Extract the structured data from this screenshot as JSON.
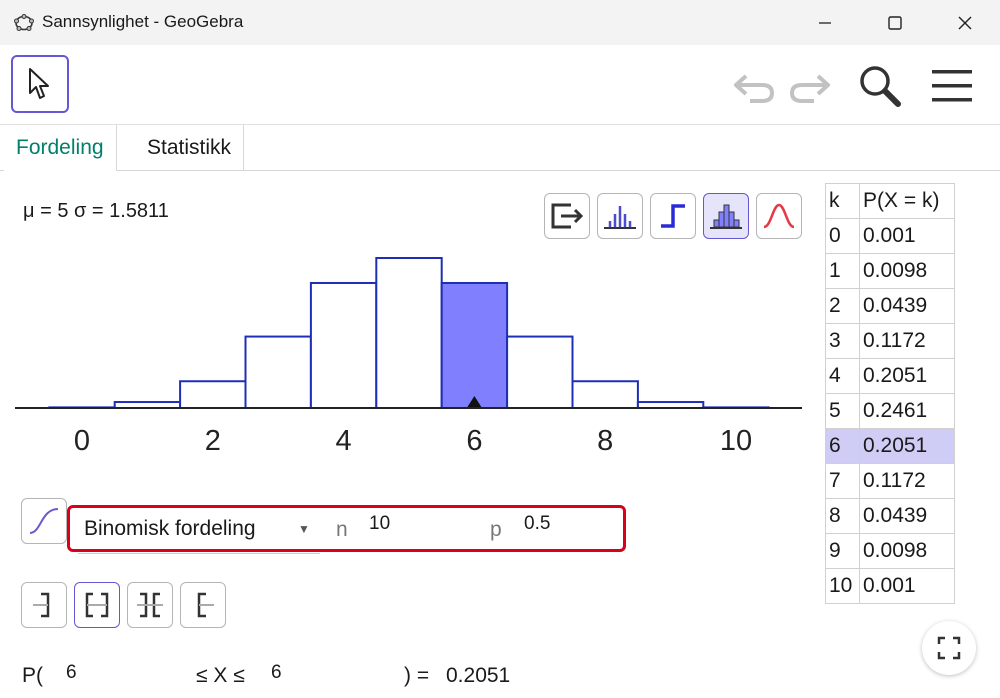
{
  "window": {
    "title": "Sannsynlighet - GeoGebra",
    "icons": {
      "app": "geogebra-icon",
      "minimize": "minimize-icon",
      "maximize": "maximize-icon",
      "close": "close-icon"
    }
  },
  "toolbar": {
    "icons": [
      "move-tool-icon",
      "undo-icon",
      "redo-icon",
      "search-icon",
      "menu-icon"
    ]
  },
  "tabs": [
    {
      "label": "Fordeling",
      "active": true
    },
    {
      "label": "Statistikk",
      "active": false
    }
  ],
  "stats": "μ = 5 σ = 1.5811",
  "chart_buttons": [
    {
      "icon": "export-icon",
      "selected": false
    },
    {
      "icon": "bar-graph-icon",
      "selected": false
    },
    {
      "icon": "step-graph-icon",
      "selected": false
    },
    {
      "icon": "histogram-icon",
      "selected": true
    },
    {
      "icon": "normal-overlay-icon",
      "selected": false
    }
  ],
  "chart_data": {
    "type": "bar",
    "categories": [
      0,
      1,
      2,
      3,
      4,
      5,
      6,
      7,
      8,
      9,
      10
    ],
    "values": [
      0.001,
      0.0098,
      0.0439,
      0.1172,
      0.2051,
      0.2461,
      0.2051,
      0.1172,
      0.0439,
      0.0098,
      0.001
    ],
    "highlighted": [
      6
    ],
    "marker_at": 6,
    "xticks": [
      "0",
      "2",
      "4",
      "6",
      "8",
      "10"
    ],
    "xlim": [
      -1,
      11
    ],
    "colors": {
      "bar_stroke": "#1f2fb5",
      "highlight_fill": "#8080ff",
      "axis": "#222222"
    }
  },
  "table": {
    "headers": [
      "k",
      "P(X = k)"
    ],
    "rows": [
      [
        "0",
        "0.001"
      ],
      [
        "1",
        "0.0098"
      ],
      [
        "2",
        "0.0439"
      ],
      [
        "3",
        "0.1172"
      ],
      [
        "4",
        "0.2051"
      ],
      [
        "5",
        "0.2461"
      ],
      [
        "6",
        "0.2051"
      ],
      [
        "7",
        "0.1172"
      ],
      [
        "8",
        "0.0439"
      ],
      [
        "9",
        "0.0098"
      ],
      [
        "10",
        "0.001"
      ]
    ],
    "highlighted_row": 6
  },
  "distribution": {
    "selected": "Binomisk fordeling",
    "params": [
      {
        "label": "n",
        "value": "10"
      },
      {
        "label": "p",
        "value": "0.5"
      }
    ]
  },
  "interval_buttons": [
    {
      "icon": "left-sided-icon",
      "selected": false
    },
    {
      "icon": "interval-icon",
      "selected": true
    },
    {
      "icon": "two-tailed-icon",
      "selected": false
    },
    {
      "icon": "right-sided-icon",
      "selected": false
    }
  ],
  "probability": {
    "prefix": "P(",
    "lower": "6",
    "middle": "≤ X ≤",
    "upper": "6",
    "suffix": ") =",
    "result": "0.2051"
  },
  "accent": {
    "green": "#00806b",
    "purple": "#6557d2",
    "red": "#d9001b"
  }
}
